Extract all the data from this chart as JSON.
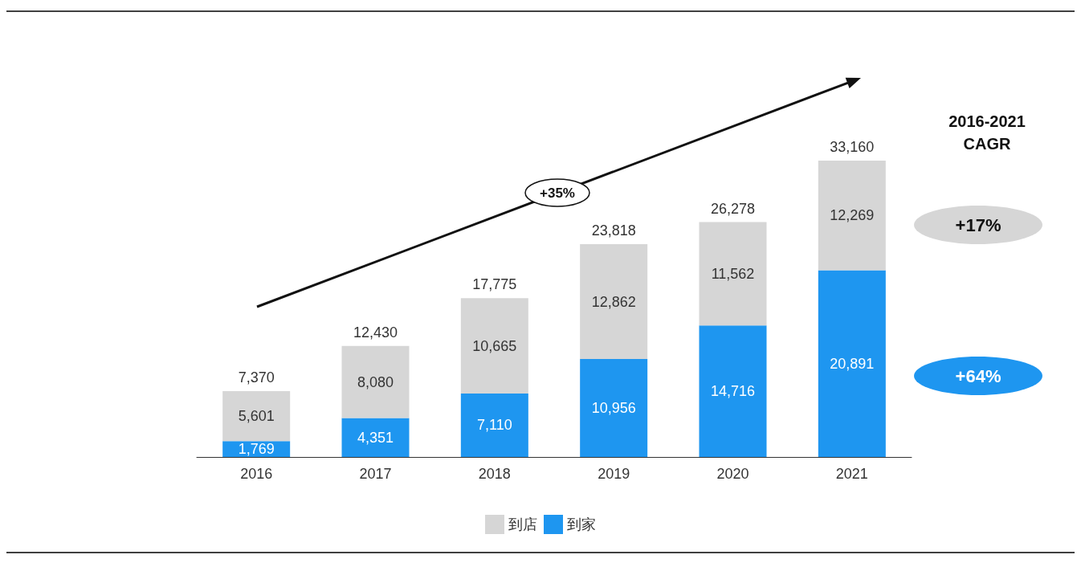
{
  "chart_data": {
    "type": "bar",
    "stacked": true,
    "categories": [
      "2016",
      "2017",
      "2018",
      "2019",
      "2020",
      "2021"
    ],
    "series": [
      {
        "name": "到家",
        "color": "#1e96f0",
        "values": [
          1769,
          4351,
          7110,
          10956,
          14716,
          20891
        ],
        "value_labels": [
          "1,769",
          "4,351",
          "7,110",
          "10,956",
          "14,716",
          "20,891"
        ]
      },
      {
        "name": "到店",
        "color": "#d6d6d6",
        "values": [
          5601,
          8080,
          10665,
          12862,
          11562,
          12269
        ],
        "value_labels": [
          "5,601",
          "8,080",
          "10,665",
          "12,862",
          "11,562",
          "12,269"
        ]
      }
    ],
    "totals": [
      "7,370",
      "12,430",
      "17,775",
      "23,818",
      "26,278",
      "33,160"
    ],
    "legend": "bottom",
    "annotations": [
      "+35%",
      "2016-2021\nCAGR",
      "+17%",
      "+64%"
    ]
  }
}
